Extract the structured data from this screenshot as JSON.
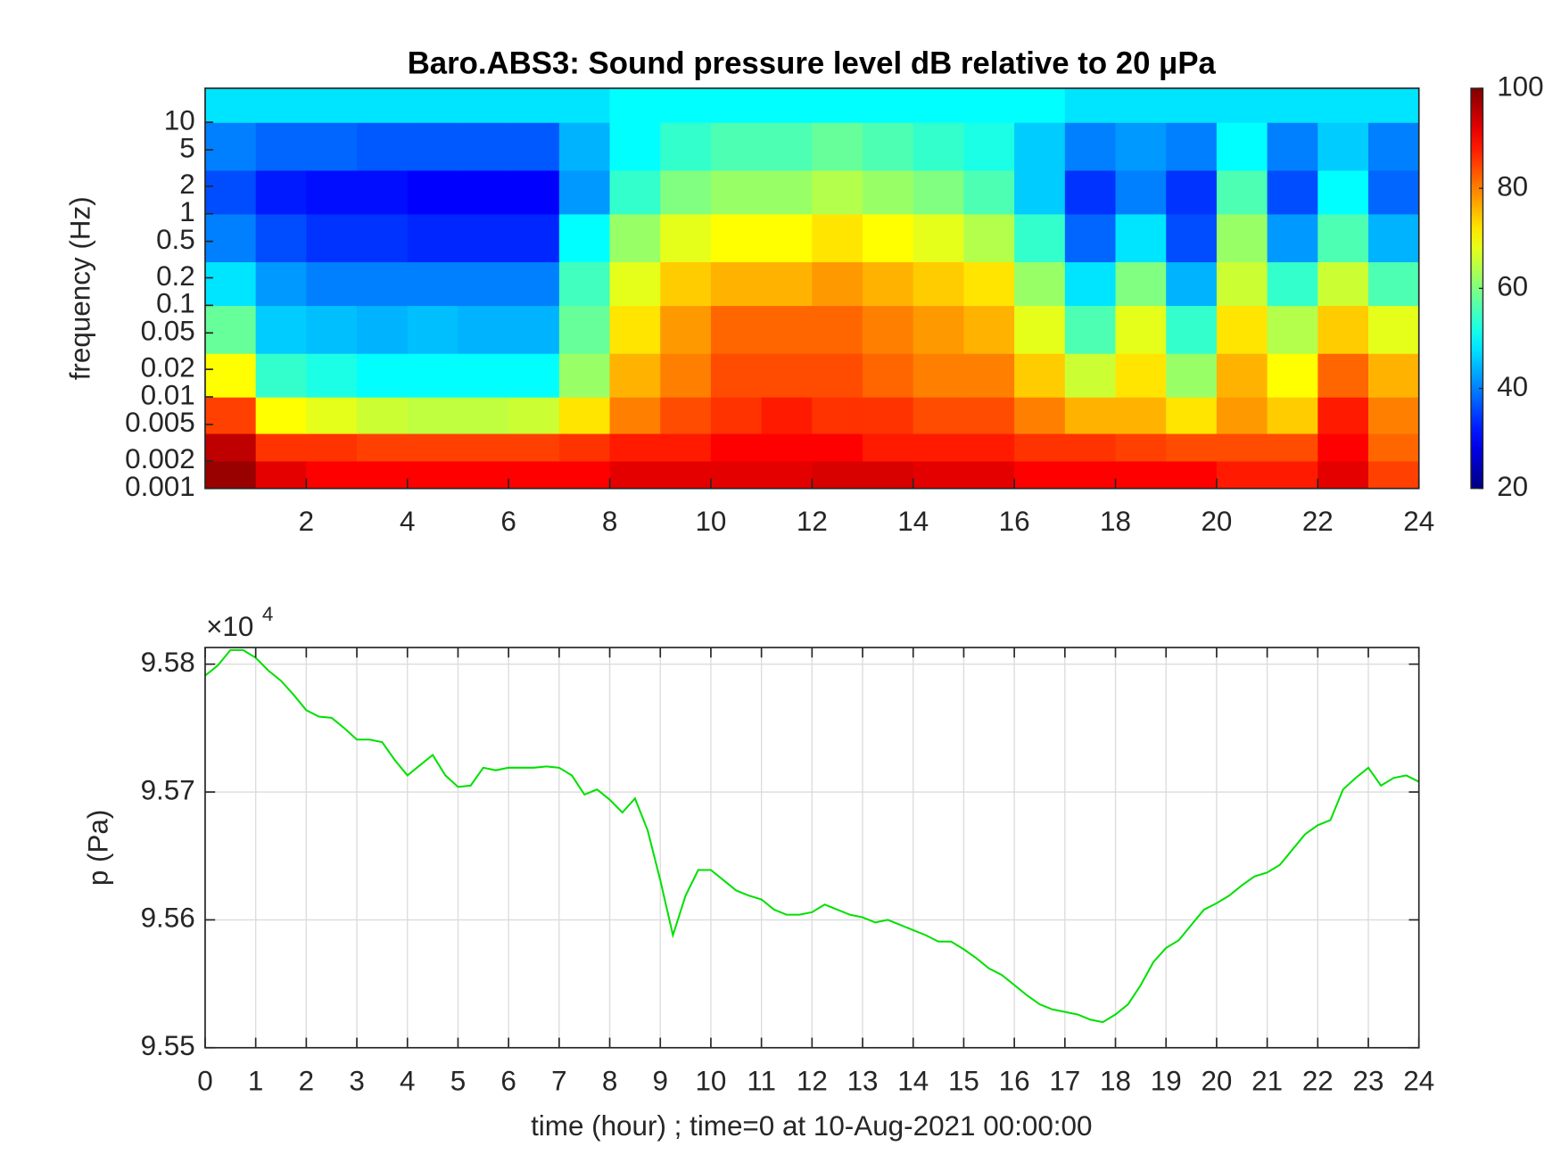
{
  "chart_data": [
    {
      "type": "heatmap",
      "title": "Baro.ABS3: Sound pressure level dB relative to 20 μPa",
      "ylabel": "frequency (Hz)",
      "yscale": "log",
      "colormap": "jet",
      "x": [
        0,
        1,
        2,
        3,
        4,
        5,
        6,
        7,
        8,
        9,
        10,
        11,
        12,
        13,
        14,
        15,
        16,
        17,
        18,
        19,
        20,
        21,
        22,
        23,
        24
      ],
      "y": [
        0.001,
        0.002,
        0.004,
        0.01,
        0.03,
        0.1,
        0.3,
        1,
        3,
        10,
        23.5
      ],
      "z": [
        [
          98,
          92,
          90,
          90,
          90,
          90,
          90,
          90,
          92,
          92,
          92,
          92,
          93,
          93,
          92,
          92,
          90,
          90,
          90,
          90,
          88,
          88,
          92,
          85
        ],
        [
          95,
          86,
          86,
          85,
          85,
          85,
          85,
          86,
          88,
          88,
          90,
          90,
          90,
          88,
          88,
          88,
          86,
          86,
          85,
          84,
          84,
          84,
          90,
          82
        ],
        [
          85,
          70,
          68,
          66,
          65,
          65,
          66,
          72,
          80,
          84,
          86,
          88,
          86,
          86,
          84,
          84,
          80,
          76,
          76,
          72,
          78,
          74,
          88,
          80
        ],
        [
          70,
          54,
          52,
          50,
          50,
          50,
          50,
          62,
          76,
          80,
          84,
          84,
          84,
          82,
          80,
          80,
          74,
          66,
          72,
          62,
          76,
          70,
          82,
          76
        ],
        [
          58,
          46,
          45,
          44,
          45,
          44,
          44,
          58,
          72,
          78,
          82,
          82,
          82,
          80,
          78,
          76,
          68,
          56,
          68,
          54,
          72,
          64,
          74,
          68
        ],
        [
          48,
          42,
          40,
          40,
          40,
          40,
          40,
          55,
          68,
          74,
          76,
          76,
          78,
          76,
          74,
          72,
          62,
          48,
          60,
          44,
          66,
          54,
          66,
          56
        ],
        [
          40,
          36,
          34,
          34,
          33,
          33,
          33,
          50,
          62,
          68,
          70,
          70,
          72,
          70,
          68,
          64,
          54,
          38,
          48,
          36,
          62,
          42,
          56,
          44
        ],
        [
          36,
          32,
          31,
          31,
          30,
          30,
          30,
          42,
          54,
          60,
          62,
          62,
          64,
          62,
          60,
          56,
          46,
          34,
          40,
          34,
          56,
          36,
          50,
          38
        ],
        [
          40,
          38,
          38,
          37,
          37,
          37,
          37,
          44,
          50,
          54,
          56,
          56,
          58,
          56,
          54,
          52,
          46,
          40,
          42,
          40,
          50,
          40,
          46,
          40
        ],
        [
          48,
          48,
          48,
          48,
          48,
          48,
          48,
          48,
          50,
          50,
          50,
          50,
          50,
          50,
          50,
          50,
          50,
          48,
          48,
          48,
          48,
          48,
          48,
          48
        ]
      ],
      "xlim": [
        0,
        24
      ],
      "xticks": [
        2,
        4,
        6,
        8,
        10,
        12,
        14,
        16,
        18,
        20,
        22,
        24
      ],
      "ylim": [
        0.001,
        23.5
      ],
      "yticks": [
        0.001,
        0.002,
        0.005,
        0.01,
        0.02,
        0.05,
        0.1,
        0.2,
        0.5,
        1,
        2,
        5,
        10
      ],
      "clim": [
        20,
        100
      ],
      "cticks": [
        20,
        40,
        60,
        80,
        100
      ]
    },
    {
      "type": "line",
      "xlabel": "time (hour) ; time=0 at 10-Aug-2021 00:00:00",
      "ylabel": "p (Pa)",
      "y_multiplier": {
        "base": "×10",
        "exponent": "4"
      },
      "grid": true,
      "x": [
        0,
        0.25,
        0.5,
        0.75,
        1,
        1.25,
        1.5,
        1.75,
        2,
        2.25,
        2.5,
        2.75,
        3,
        3.25,
        3.5,
        3.75,
        4,
        4.25,
        4.5,
        4.75,
        5,
        5.25,
        5.5,
        5.75,
        6,
        6.25,
        6.5,
        6.75,
        7,
        7.25,
        7.5,
        7.75,
        8,
        8.25,
        8.5,
        8.75,
        9,
        9.25,
        9.5,
        9.75,
        10,
        10.25,
        10.5,
        10.75,
        11,
        11.25,
        11.5,
        11.75,
        12,
        12.25,
        12.5,
        12.75,
        13,
        13.25,
        13.5,
        13.75,
        14,
        14.25,
        14.5,
        14.75,
        15,
        15.25,
        15.5,
        15.75,
        16,
        16.25,
        16.5,
        16.75,
        17,
        17.25,
        17.5,
        17.75,
        18,
        18.25,
        18.5,
        18.75,
        19,
        19.25,
        19.5,
        19.75,
        20,
        20.25,
        20.5,
        20.75,
        21,
        21.25,
        21.5,
        21.75,
        22,
        22.25,
        22.5,
        22.75,
        23,
        23.25,
        23.5,
        23.75,
        24
      ],
      "series": [
        {
          "color": "#00e000",
          "values": [
            95791,
            95799,
            95811,
            95811,
            95805,
            95795,
            95787,
            95776,
            95764,
            95759,
            95758,
            95750,
            95741,
            95741,
            95739,
            95725,
            95713,
            95721,
            95729,
            95713,
            95704,
            95705,
            95719,
            95717,
            95719,
            95719,
            95719,
            95720,
            95719,
            95713,
            95698,
            95702,
            95694,
            95684,
            95695,
            95670,
            95631,
            95588,
            95619,
            95639,
            95639,
            95631,
            95623,
            95619,
            95616,
            95608,
            95604,
            95604,
            95606,
            95612,
            95608,
            95604,
            95602,
            95598,
            95600,
            95596,
            95592,
            95588,
            95583,
            95583,
            95577,
            95570,
            95562,
            95557,
            95549,
            95541,
            95534,
            95530,
            95528,
            95526,
            95522,
            95520,
            95526,
            95534,
            95549,
            95567,
            95578,
            95584,
            95596,
            95608,
            95613,
            95619,
            95627,
            95634,
            95637,
            95643,
            95655,
            95667,
            95674,
            95678,
            95702,
            95711,
            95719,
            95705,
            95711,
            95713,
            95708
          ]
        }
      ],
      "xlim": [
        0,
        24
      ],
      "xticks": [
        0,
        1,
        2,
        3,
        4,
        5,
        6,
        7,
        8,
        9,
        10,
        11,
        12,
        13,
        14,
        15,
        16,
        17,
        18,
        19,
        20,
        21,
        22,
        23,
        24
      ],
      "ylim": [
        95500,
        95813
      ],
      "yticks": [
        {
          "value": 95500,
          "label": "9.55"
        },
        {
          "value": 95600,
          "label": "9.56"
        },
        {
          "value": 95700,
          "label": "9.57"
        },
        {
          "value": 95800,
          "label": "9.58"
        }
      ]
    }
  ]
}
